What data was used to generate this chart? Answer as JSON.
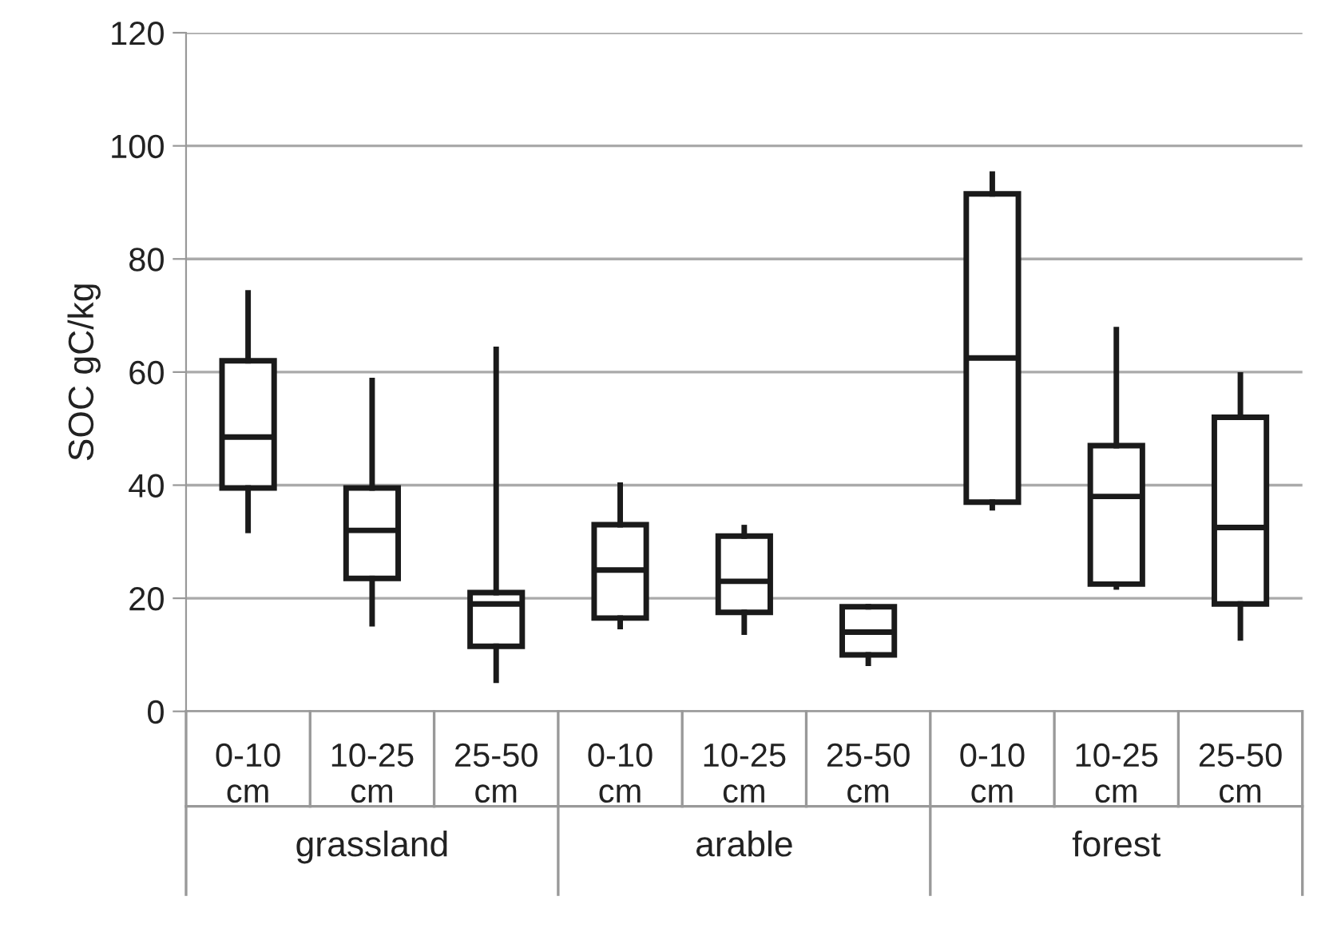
{
  "chart_data": {
    "type": "box",
    "ylabel": "SOC gC/kg",
    "categories": [
      "0-10\ncm",
      "10-25\ncm",
      "25-50\ncm",
      "0-10\ncm",
      "10-25\ncm",
      "25-50\ncm",
      "0-10\ncm",
      "10-25\ncm",
      "25-50\ncm"
    ],
    "boxes": [
      {
        "low": 32,
        "q1": 39.5,
        "median": 48.5,
        "q3": 62,
        "high": 74
      },
      {
        "low": 15.5,
        "q1": 23.5,
        "median": 32,
        "q3": 39.5,
        "high": 58.5
      },
      {
        "low": 5.5,
        "q1": 11.5,
        "median": 19,
        "q3": 21,
        "high": 64
      },
      {
        "low": 15,
        "q1": 16.5,
        "median": 25,
        "q3": 33,
        "high": 40
      },
      {
        "low": 14,
        "q1": 17.5,
        "median": 23,
        "q3": 31,
        "high": 32.5
      },
      {
        "low": 8.5,
        "q1": 10,
        "median": 14,
        "q3": 18.5,
        "high": 18.5
      },
      {
        "low": 36,
        "q1": 37,
        "median": 62.5,
        "q3": 91.5,
        "high": 95
      },
      {
        "low": 22,
        "q1": 22.5,
        "median": 38,
        "q3": 47,
        "high": 67.5
      },
      {
        "low": 13,
        "q1": 19,
        "median": 32.5,
        "q3": 52,
        "high": 59.5
      }
    ],
    "color": "#1a1a1a",
    "annotations": [
      "grassland",
      "arable",
      "forest"
    ],
    "ylim": [
      0,
      120
    ],
    "yticks": [
      0,
      20,
      40,
      60,
      80,
      100,
      120
    ],
    "grid": "y"
  }
}
